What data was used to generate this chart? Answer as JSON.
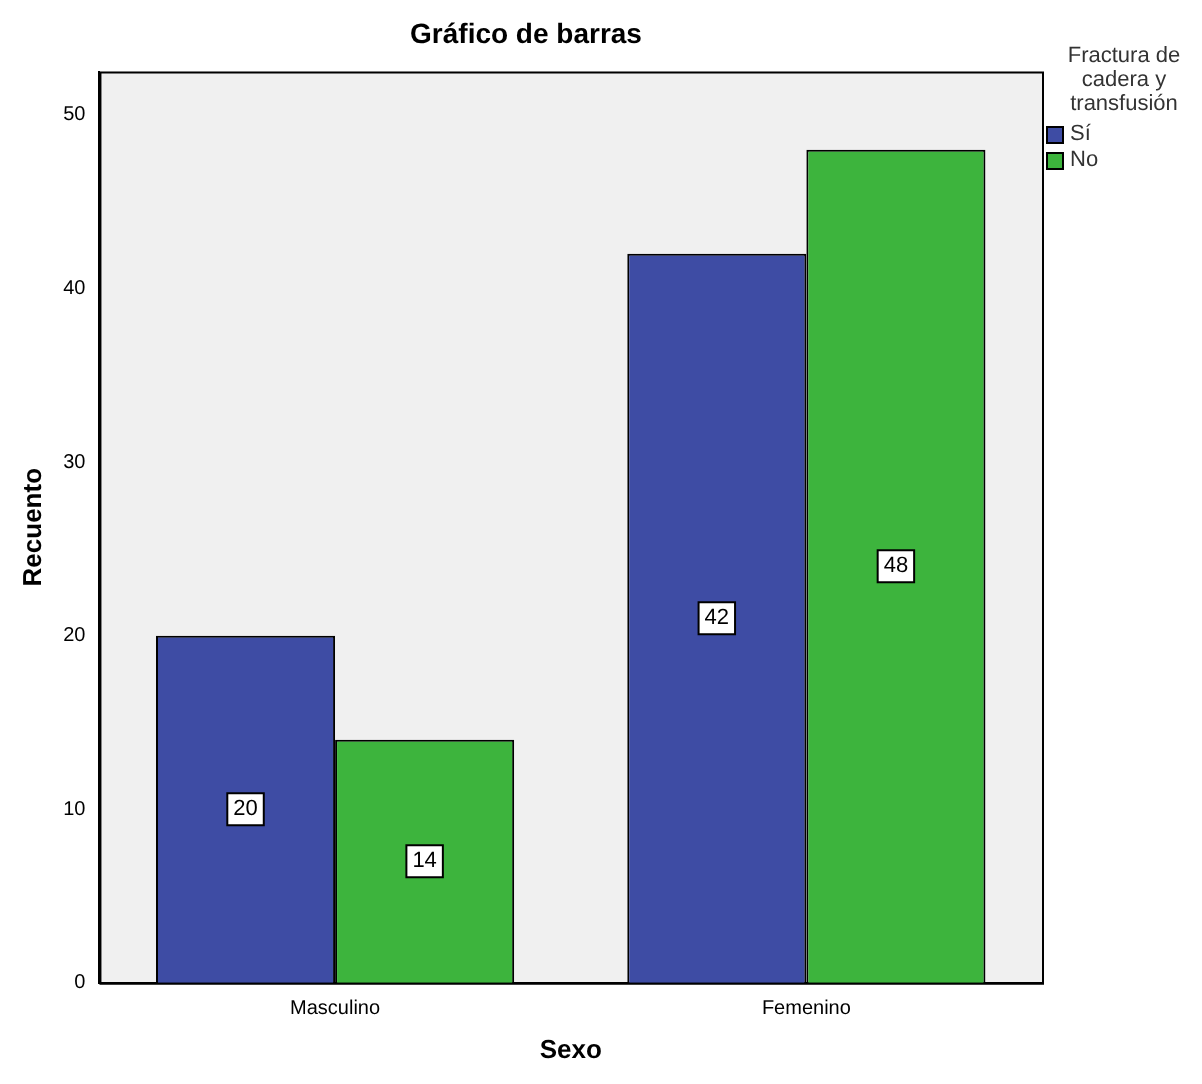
{
  "chart_data": {
    "type": "bar",
    "title": "Gráfico de barras",
    "xlabel": "Sexo",
    "ylabel": "Recuento",
    "legend_title": "Fractura de cadera y transfusión",
    "categories": [
      "Masculino",
      "Femenino"
    ],
    "series": [
      {
        "name": "Sí",
        "color": "#3e4ca4",
        "values": [
          20,
          42
        ]
      },
      {
        "name": "No",
        "color": "#3db43d",
        "values": [
          14,
          48
        ]
      }
    ],
    "ylim": [
      0,
      52.5
    ],
    "yticks": [
      0,
      10,
      20,
      30,
      40,
      50
    ],
    "grid": false,
    "legend": "top right",
    "data_labels": true
  }
}
